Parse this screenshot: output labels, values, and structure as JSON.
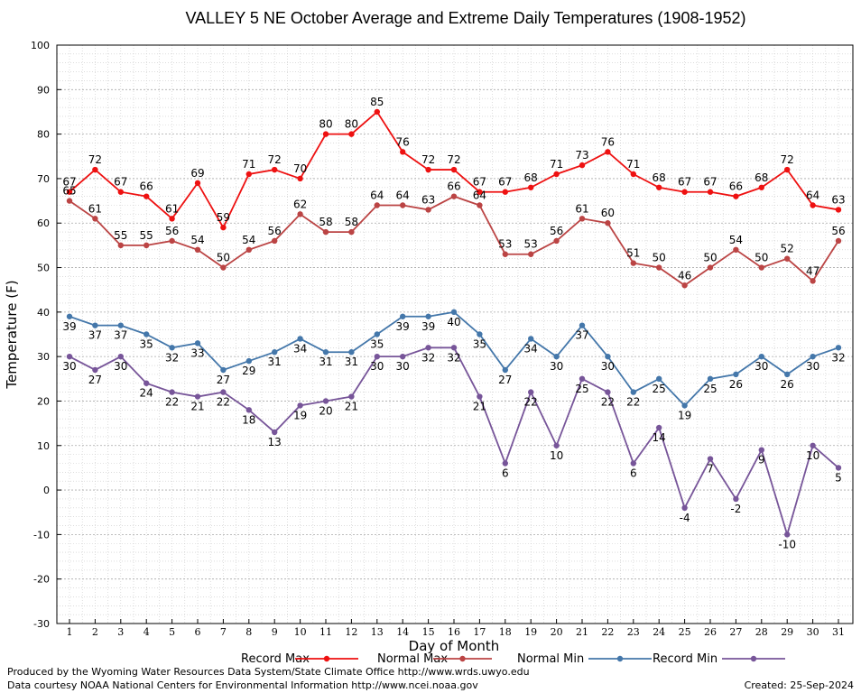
{
  "chart_data": {
    "type": "line",
    "title": "VALLEY 5 NE October Average and Extreme Daily Temperatures (1908-1952)",
    "xlabel": "Day of Month",
    "ylabel": "Temperature (F)",
    "ylim": [
      -30,
      100
    ],
    "xlim": [
      1,
      31
    ],
    "grid": true,
    "legend_position": "bottom",
    "x": [
      1,
      2,
      3,
      4,
      5,
      6,
      7,
      8,
      9,
      10,
      11,
      12,
      13,
      14,
      15,
      16,
      17,
      18,
      19,
      20,
      21,
      22,
      23,
      24,
      25,
      26,
      27,
      28,
      29,
      30,
      31
    ],
    "y_ticks": [
      -30,
      -20,
      -10,
      0,
      10,
      20,
      30,
      40,
      50,
      60,
      70,
      80,
      90,
      100
    ],
    "series": [
      {
        "name": "Record Max",
        "color": "#ee1111",
        "values": [
          67,
          72,
          67,
          66,
          61,
          69,
          59,
          71,
          72,
          70,
          80,
          80,
          85,
          76,
          72,
          72,
          67,
          67,
          68,
          71,
          73,
          76,
          71,
          68,
          67,
          67,
          66,
          68,
          72,
          64,
          63
        ]
      },
      {
        "name": "Normal Max",
        "color": "#bb4444",
        "values": [
          65,
          61,
          55,
          55,
          56,
          54,
          50,
          54,
          56,
          62,
          58,
          58,
          64,
          64,
          63,
          66,
          64,
          53,
          53,
          56,
          61,
          60,
          51,
          50,
          46,
          50,
          54,
          50,
          52,
          47,
          56
        ]
      },
      {
        "name": "Normal Min",
        "color": "#4477aa",
        "values": [
          39,
          37,
          37,
          35,
          32,
          33,
          27,
          29,
          31,
          34,
          31,
          31,
          35,
          39,
          39,
          40,
          35,
          27,
          34,
          30,
          37,
          30,
          22,
          25,
          19,
          25,
          26,
          30,
          26,
          30,
          32
        ]
      },
      {
        "name": "Record Min",
        "color": "#775599",
        "values": [
          30,
          27,
          30,
          24,
          22,
          21,
          22,
          18,
          13,
          19,
          20,
          21,
          30,
          30,
          32,
          32,
          21,
          6,
          22,
          10,
          25,
          22,
          6,
          14,
          -4,
          7,
          -2,
          9,
          -10,
          10,
          5
        ]
      }
    ]
  },
  "footer": {
    "produced_by": "Produced by the Wyoming Water Resources Data System/State Climate Office http://www.wrds.uwyo.edu",
    "courtesy": "Data courtesy NOAA National Centers for Environmental Information http://www.ncei.noaa.gov",
    "created": "Created:  25-Sep-2024"
  }
}
